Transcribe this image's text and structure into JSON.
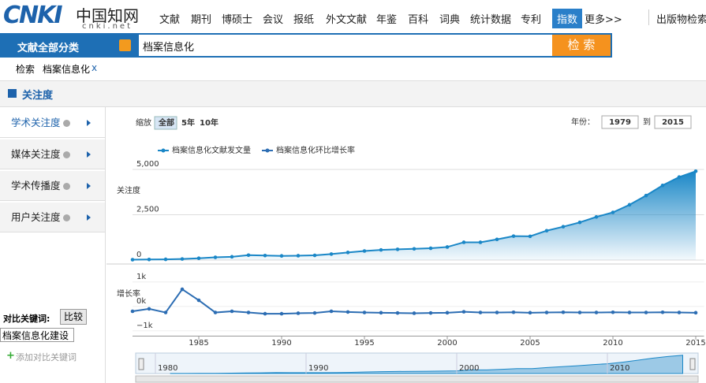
{
  "logo": {
    "brand": "CNKI",
    "cn": "中国知网",
    "site": "cnki.net"
  },
  "nav": [
    "文献",
    "期刊",
    "博硕士",
    "会议",
    "报纸",
    "外文文献",
    "年鉴",
    "百科",
    "词典",
    "统计数据",
    "专利",
    "指数",
    "更多>>"
  ],
  "nav_right": "出版物检索",
  "search": {
    "category": "文献全部分类",
    "query": "档案信息化",
    "button": "检 索"
  },
  "breadcrumb": {
    "root": "检索",
    "term": "档案信息化",
    "close": "x"
  },
  "section_title": "关注度",
  "side_menu": [
    "学术关注度",
    "媒体关注度",
    "学术传播度",
    "用户关注度"
  ],
  "compare": {
    "label": "对比关键词:",
    "button": "比较",
    "input": "档案信息化建设",
    "add": "添加对比关键词"
  },
  "chart_data": {
    "type": "line",
    "zoom": {
      "label": "缩放",
      "options": [
        "全部",
        "5年",
        "10年"
      ]
    },
    "range": {
      "label": "年份：",
      "from": "1979",
      "to": "到",
      "end": "2015"
    },
    "ylabel": "关注度",
    "y2label": "增长率",
    "x": [
      1981,
      1982,
      1983,
      1984,
      1985,
      1986,
      1987,
      1988,
      1989,
      1990,
      1991,
      1992,
      1993,
      1994,
      1995,
      1996,
      1997,
      1998,
      1999,
      2000,
      2001,
      2002,
      2003,
      2004,
      2005,
      2006,
      2007,
      2008,
      2009,
      2010,
      2011,
      2012,
      2013,
      2014,
      2015
    ],
    "xlim": [
      1981,
      2015.5
    ],
    "xticks": [
      1985,
      1990,
      1995,
      2000,
      2005,
      2010,
      2015
    ],
    "ylim": [
      0,
      5500
    ],
    "yticks": [
      0,
      {
        "value": 2500,
        "label": "2,500"
      },
      {
        "value": 5000,
        "label": "5,000"
      }
    ],
    "y2lim": [
      -1200,
      1300
    ],
    "y2ticks": [
      {
        "value": -1000,
        "label": "−1k"
      },
      {
        "value": 0,
        "label": "0k"
      },
      {
        "value": 1000,
        "label": "1k"
      }
    ],
    "navigator_xticks": [
      1980,
      1990,
      2000,
      2010
    ],
    "series": [
      {
        "name": "档案信息化文献发文量",
        "color": "#1a87c7",
        "values": [
          20,
          30,
          40,
          60,
          100,
          150,
          180,
          270,
          250,
          230,
          240,
          260,
          330,
          420,
          500,
          560,
          590,
          620,
          650,
          720,
          980,
          980,
          1140,
          1320,
          1310,
          1620,
          1840,
          2080,
          2380,
          2630,
          3050,
          3560,
          4120,
          4580,
          4900
        ]
      },
      {
        "name": "档案信息化环比增长率",
        "color": "#2c6db3",
        "axis": "y2",
        "values": [
          -200,
          -100,
          -250,
          700,
          250,
          -250,
          -200,
          -250,
          -300,
          -300,
          -280,
          -270,
          -200,
          -230,
          -250,
          -260,
          -270,
          -280,
          -270,
          -260,
          -220,
          -250,
          -250,
          -240,
          -260,
          -250,
          -240,
          -250,
          -250,
          -240,
          -250,
          -250,
          -240,
          -250,
          -260
        ]
      }
    ]
  }
}
